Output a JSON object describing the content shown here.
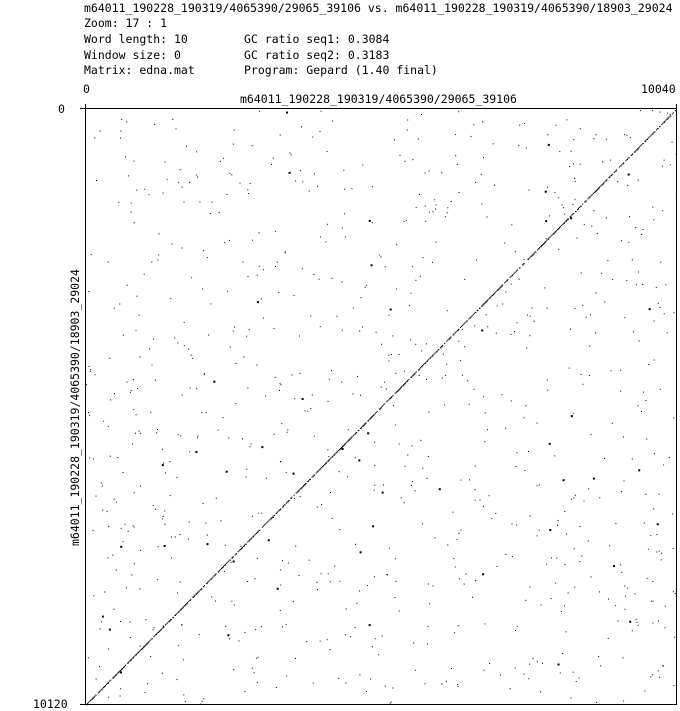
{
  "header": {
    "title": "m64011_190228_190319/4065390/29065_39106 vs. m64011_190228_190319/4065390/18903_29024",
    "zoom": "Zoom: 17 : 1",
    "word_length": "Word length: 10",
    "window_size": "Window size: 0",
    "matrix": "Matrix: edna.mat",
    "gc_seq1": "GC ratio seq1: 0.3084",
    "gc_seq2": "GC ratio seq2: 0.3183",
    "program": "Program: Gepard (1.40 final)"
  },
  "plot": {
    "x_axis_label": "m64011_190228_190319/4065390/29065_39106",
    "y_axis_label": "m64011_190228_190319/4065390/18903_29024",
    "x_start": "0",
    "x_end": "10040",
    "y_start": "0",
    "y_end": "10120",
    "seq1_length": 10040,
    "seq2_length": 10120,
    "dot_color": "#000000",
    "background_color": "#ffffff"
  }
}
